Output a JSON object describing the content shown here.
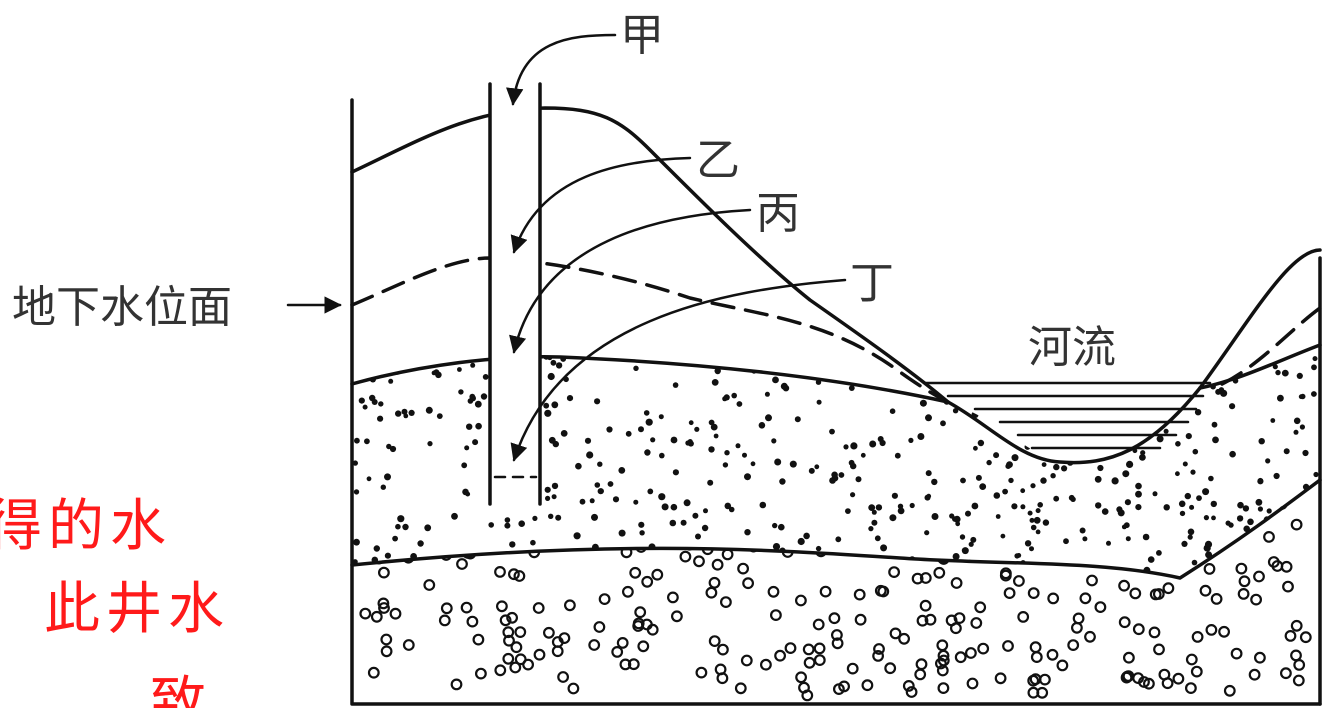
{
  "labels": {
    "jia": "甲",
    "yi": "乙",
    "bing": "丙",
    "ding": "丁",
    "water_table": "地下水位面",
    "river": "河流"
  },
  "overlay_text": [
    "得的水",
    "此井水",
    "致。"
  ],
  "colors": {
    "line": "#111111",
    "label": "#333333",
    "overlay": "#ff1a1a"
  }
}
